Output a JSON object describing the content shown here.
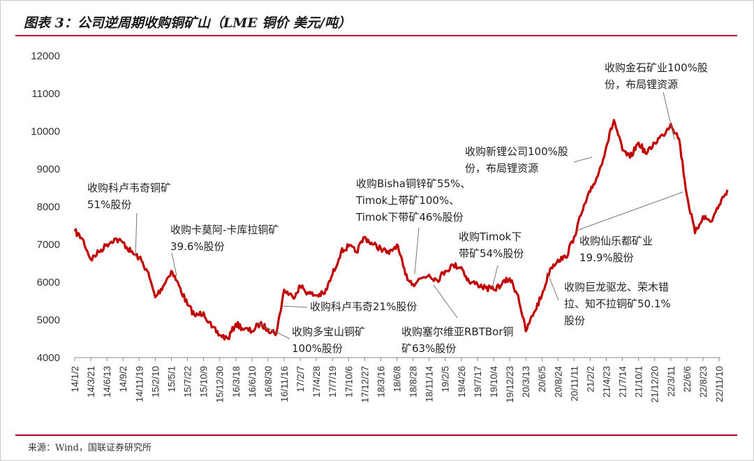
{
  "header": {
    "title": "图表 3：公司逆周期收购铜矿山（LME 铜价 美元/吨）"
  },
  "footer": {
    "source": "来源：Wind，国联证券研究所"
  },
  "colors": {
    "line": "#c00000",
    "rule": "#b8002a",
    "leader": "#777777"
  },
  "chart_data": {
    "type": "line",
    "title": "图表 3：公司逆周期收购铜矿山（LME 铜价 美元/吨）",
    "xlabel": "",
    "ylabel": "",
    "ylim": [
      4000,
      12000
    ],
    "yticks": [
      4000,
      5000,
      6000,
      7000,
      8000,
      9000,
      10000,
      11000,
      12000
    ],
    "xticks": [
      "14/1/2",
      "14/3/21",
      "14/6/13",
      "14/9/2",
      "14/11/19",
      "15/2/10",
      "15/5/1",
      "15/7/22",
      "15/10/9",
      "15/12/30",
      "16/3/18",
      "16/6/10",
      "16/8/30",
      "16/11/16",
      "17/2/7",
      "17/4/28",
      "17/7/19",
      "17/10/6",
      "17/12/27",
      "18/3/16",
      "18/6/8",
      "18/8/28",
      "18/11/14",
      "19/2/5",
      "19/4/26",
      "19/7/17",
      "19/10/4",
      "19/12/23",
      "20/3/13",
      "20/6/5",
      "20/8/24",
      "20/11/11",
      "21/2/2",
      "21/4/23",
      "21/7/14",
      "21/10/1",
      "21/12/20",
      "22/3/11",
      "22/6/6",
      "22/8/23",
      "22/11/10"
    ],
    "grid": false,
    "legend": "none",
    "series": [
      {
        "name": "",
        "x": [
          "14/1/2",
          "14/2/10",
          "14/3/21",
          "14/5/1",
          "14/6/13",
          "14/7/20",
          "14/9/2",
          "14/10/10",
          "14/11/19",
          "14/12/30",
          "15/2/10",
          "15/3/20",
          "15/5/1",
          "15/6/10",
          "15/7/22",
          "15/9/1",
          "15/10/9",
          "15/11/20",
          "15/12/30",
          "16/2/10",
          "16/3/18",
          "16/5/1",
          "16/6/10",
          "16/7/20",
          "16/8/30",
          "16/10/10",
          "16/11/16",
          "16/12/30",
          "17/2/7",
          "17/3/20",
          "17/4/28",
          "17/6/10",
          "17/7/19",
          "17/8/30",
          "17/10/6",
          "17/11/15",
          "17/12/27",
          "18/2/5",
          "18/3/16",
          "18/4/28",
          "18/6/8",
          "18/7/20",
          "18/8/28",
          "18/10/5",
          "18/11/14",
          "18/12/25",
          "19/2/5",
          "19/3/15",
          "19/4/26",
          "19/6/5",
          "19/7/17",
          "19/8/26",
          "19/10/4",
          "19/11/15",
          "19/12/23",
          "20/2/5",
          "20/3/13",
          "20/4/25",
          "20/6/5",
          "20/7/15",
          "20/8/24",
          "20/10/1",
          "20/11/11",
          "20/12/20",
          "21/2/2",
          "21/3/15",
          "21/4/23",
          "21/6/1",
          "21/7/14",
          "21/8/20",
          "21/10/1",
          "21/11/10",
          "21/12/20",
          "22/2/1",
          "22/3/11",
          "22/4/25",
          "22/6/6",
          "22/7/15",
          "22/8/23",
          "22/10/1",
          "22/11/10",
          "22/12/20"
        ],
        "values": [
          7350,
          7150,
          6600,
          6800,
          7000,
          7150,
          7050,
          6800,
          6650,
          6300,
          5600,
          5900,
          6300,
          5900,
          5400,
          5100,
          5200,
          4800,
          4600,
          4500,
          4900,
          4750,
          4700,
          4900,
          4750,
          4650,
          5800,
          5600,
          5900,
          5700,
          5650,
          5700,
          6200,
          6800,
          6950,
          6800,
          7200,
          7000,
          6900,
          6750,
          7000,
          6200,
          5950,
          6100,
          6200,
          6050,
          6300,
          6450,
          6400,
          6000,
          5950,
          5850,
          5800,
          5950,
          6100,
          5650,
          4700,
          5200,
          5650,
          6350,
          6600,
          6650,
          7200,
          7850,
          8400,
          8900,
          9600,
          10300,
          9500,
          9300,
          9700,
          9400,
          9700,
          9900,
          10200,
          9800,
          8300,
          7300,
          7750,
          7600,
          8050,
          8450
        ]
      }
    ],
    "annotations": [
      {
        "lines": [
          "收购科卢韦奇铜矿",
          "51%股份"
        ]
      },
      {
        "lines": [
          "收购卡莫阿-卡库拉铜矿",
          "39.6%股份"
        ]
      },
      {
        "lines": [
          "收购科卢韦奇21%股份"
        ]
      },
      {
        "lines": [
          "收购多宝山铜矿",
          "100%股份"
        ]
      },
      {
        "lines": [
          "收购Bisha铜锌矿55%、",
          "Timok上带矿100%、",
          "Timok下带矿46%股份"
        ]
      },
      {
        "lines": [
          "收购塞尔维亚RBTBor铜",
          "矿63%股份"
        ]
      },
      {
        "lines": [
          "收购Timok下",
          "带矿54%股份"
        ]
      },
      {
        "lines": [
          "收购巨龙驱龙、荣木错",
          "拉、知不拉铜矿50.1%",
          "股份"
        ]
      },
      {
        "lines": [
          "收购新锂公司100%股",
          "份，布局锂资源"
        ]
      },
      {
        "lines": [
          "收购金石矿业100%股",
          "份，布局锂资源"
        ]
      },
      {
        "lines": [
          "收购仙乐都矿业",
          "19.9%股份"
        ]
      }
    ]
  }
}
